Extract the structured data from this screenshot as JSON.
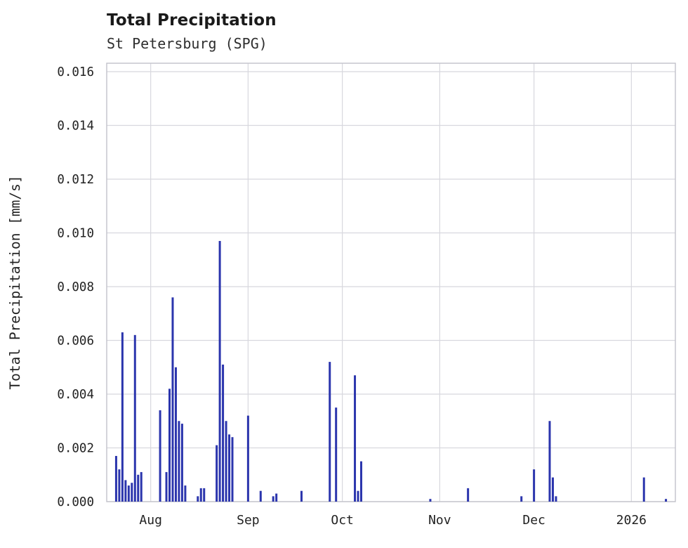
{
  "page": {
    "title": "Total Precipitation",
    "subtitle": "St Petersburg (SPG)"
  },
  "colors": {
    "bar": "#2b35ad",
    "grid": "#d8d8de",
    "border": "#c2c2ca",
    "text": "#1f1f1f",
    "tick_text": "#222222"
  },
  "chart_data": {
    "type": "bar",
    "title": "Total Precipitation",
    "subtitle": "St Petersburg (SPG)",
    "xlabel": "",
    "ylabel": "Total Precipitation [mm/s]",
    "ylim": [
      0.0,
      0.016
    ],
    "grid": true,
    "legend": "none",
    "x_range": [
      "2025-07-18",
      "2026-01-15"
    ],
    "yticks": [
      {
        "value": 0.0,
        "label": "0.000"
      },
      {
        "value": 0.002,
        "label": "0.002"
      },
      {
        "value": 0.004,
        "label": "0.004"
      },
      {
        "value": 0.006,
        "label": "0.006"
      },
      {
        "value": 0.008,
        "label": "0.008"
      },
      {
        "value": 0.01,
        "label": "0.010"
      },
      {
        "value": 0.012,
        "label": "0.012"
      },
      {
        "value": 0.014,
        "label": "0.014"
      },
      {
        "value": 0.016,
        "label": "0.016"
      }
    ],
    "xticks": [
      {
        "date": "2025-08-01",
        "label": "Aug"
      },
      {
        "date": "2025-09-01",
        "label": "Sep"
      },
      {
        "date": "2025-10-01",
        "label": "Oct"
      },
      {
        "date": "2025-11-01",
        "label": "Nov"
      },
      {
        "date": "2025-12-01",
        "label": "Dec"
      },
      {
        "date": "2026-01-01",
        "label": "2026"
      }
    ],
    "points": [
      {
        "date": "2025-07-21",
        "value": 0.0017
      },
      {
        "date": "2025-07-22",
        "value": 0.0012
      },
      {
        "date": "2025-07-23",
        "value": 0.0063
      },
      {
        "date": "2025-07-24",
        "value": 0.0008
      },
      {
        "date": "2025-07-25",
        "value": 0.0006
      },
      {
        "date": "2025-07-26",
        "value": 0.0007
      },
      {
        "date": "2025-07-27",
        "value": 0.0062
      },
      {
        "date": "2025-07-28",
        "value": 0.001
      },
      {
        "date": "2025-07-29",
        "value": 0.0011
      },
      {
        "date": "2025-08-04",
        "value": 0.0034
      },
      {
        "date": "2025-08-06",
        "value": 0.0011
      },
      {
        "date": "2025-08-07",
        "value": 0.0042
      },
      {
        "date": "2025-08-08",
        "value": 0.0076
      },
      {
        "date": "2025-08-09",
        "value": 0.005
      },
      {
        "date": "2025-08-10",
        "value": 0.003
      },
      {
        "date": "2025-08-11",
        "value": 0.0029
      },
      {
        "date": "2025-08-12",
        "value": 0.0006
      },
      {
        "date": "2025-08-16",
        "value": 0.0002
      },
      {
        "date": "2025-08-17",
        "value": 0.0005
      },
      {
        "date": "2025-08-18",
        "value": 0.0005
      },
      {
        "date": "2025-08-22",
        "value": 0.0021
      },
      {
        "date": "2025-08-23",
        "value": 0.0097
      },
      {
        "date": "2025-08-24",
        "value": 0.0051
      },
      {
        "date": "2025-08-25",
        "value": 0.003
      },
      {
        "date": "2025-08-26",
        "value": 0.0025
      },
      {
        "date": "2025-08-27",
        "value": 0.0024
      },
      {
        "date": "2025-09-01",
        "value": 0.0032
      },
      {
        "date": "2025-09-05",
        "value": 0.0004
      },
      {
        "date": "2025-09-09",
        "value": 0.0002
      },
      {
        "date": "2025-09-10",
        "value": 0.0003
      },
      {
        "date": "2025-09-18",
        "value": 0.0004
      },
      {
        "date": "2025-09-27",
        "value": 0.0052
      },
      {
        "date": "2025-09-29",
        "value": 0.0035
      },
      {
        "date": "2025-10-05",
        "value": 0.0047
      },
      {
        "date": "2025-10-06",
        "value": 0.0004
      },
      {
        "date": "2025-10-07",
        "value": 0.0015
      },
      {
        "date": "2025-10-29",
        "value": 0.0001
      },
      {
        "date": "2025-11-10",
        "value": 0.0005
      },
      {
        "date": "2025-11-27",
        "value": 0.0002
      },
      {
        "date": "2025-12-01",
        "value": 0.0012
      },
      {
        "date": "2025-12-06",
        "value": 0.003
      },
      {
        "date": "2025-12-07",
        "value": 0.0009
      },
      {
        "date": "2025-12-08",
        "value": 0.0002
      },
      {
        "date": "2026-01-05",
        "value": 0.0009
      },
      {
        "date": "2026-01-12",
        "value": 0.0001
      }
    ]
  }
}
